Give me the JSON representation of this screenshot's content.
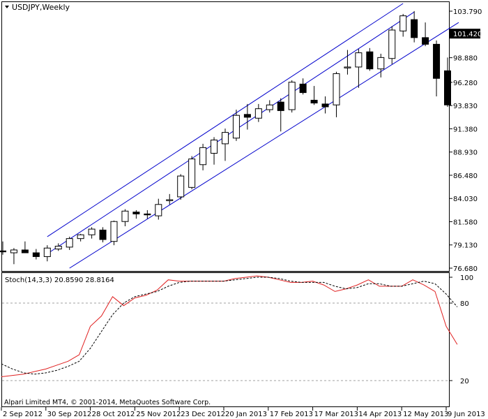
{
  "chart_data": [
    {
      "type": "candlestick",
      "title": "USDJPY,Weekly",
      "yticks": [
        "103.790",
        "101.420",
        "98.880",
        "96.280",
        "93.830",
        "91.380",
        "88.930",
        "86.480",
        "84.030",
        "81.580",
        "79.130",
        "76.680"
      ],
      "ylim": [
        76.68,
        104.6
      ],
      "current_price": "101.420",
      "xticks": [
        "2 Sep 2012",
        "30 Sep 2012",
        "28 Oct 2012",
        "25 Nov 2012",
        "23 Dec 2012",
        "20 Jan 2013",
        "17 Feb 2013",
        "17 Mar 2013",
        "14 Apr 2013",
        "12 May 2013",
        "9 Jun 2013"
      ],
      "candles": [
        {
          "x": 0,
          "o": 78.5,
          "h": 79.5,
          "l": 78.1,
          "c": 78.4
        },
        {
          "x": 1,
          "o": 78.3,
          "h": 78.8,
          "l": 77.1,
          "c": 78.6
        },
        {
          "x": 2,
          "o": 78.6,
          "h": 79.5,
          "l": 78.3,
          "c": 78.3
        },
        {
          "x": 3,
          "o": 78.3,
          "h": 78.7,
          "l": 77.6,
          "c": 77.9
        },
        {
          "x": 4,
          "o": 77.9,
          "h": 79.1,
          "l": 77.4,
          "c": 78.8
        },
        {
          "x": 5,
          "o": 78.7,
          "h": 79.3,
          "l": 78.5,
          "c": 79.0
        },
        {
          "x": 6,
          "o": 78.9,
          "h": 80.0,
          "l": 78.6,
          "c": 79.8
        },
        {
          "x": 7,
          "o": 79.8,
          "h": 80.3,
          "l": 79.5,
          "c": 80.2
        },
        {
          "x": 8,
          "o": 80.2,
          "h": 81.0,
          "l": 79.8,
          "c": 80.8
        },
        {
          "x": 9,
          "o": 80.7,
          "h": 81.0,
          "l": 79.4,
          "c": 79.7
        },
        {
          "x": 10,
          "o": 79.5,
          "h": 81.7,
          "l": 79.1,
          "c": 81.6
        },
        {
          "x": 11,
          "o": 81.6,
          "h": 82.9,
          "l": 81.1,
          "c": 82.7
        },
        {
          "x": 12,
          "o": 82.6,
          "h": 82.8,
          "l": 81.9,
          "c": 82.4
        },
        {
          "x": 13,
          "o": 82.4,
          "h": 82.8,
          "l": 81.9,
          "c": 82.3
        },
        {
          "x": 14,
          "o": 82.2,
          "h": 84.0,
          "l": 81.8,
          "c": 83.4
        },
        {
          "x": 15,
          "o": 83.8,
          "h": 84.5,
          "l": 83.4,
          "c": 83.9
        },
        {
          "x": 16,
          "o": 84.2,
          "h": 86.6,
          "l": 83.9,
          "c": 86.4
        },
        {
          "x": 17,
          "o": 85.2,
          "h": 88.5,
          "l": 85.0,
          "c": 88.2
        },
        {
          "x": 18,
          "o": 87.6,
          "h": 89.8,
          "l": 87.0,
          "c": 89.4
        },
        {
          "x": 19,
          "o": 88.8,
          "h": 90.5,
          "l": 87.6,
          "c": 90.2
        },
        {
          "x": 20,
          "o": 89.8,
          "h": 91.4,
          "l": 88.0,
          "c": 91.0
        },
        {
          "x": 21,
          "o": 90.4,
          "h": 93.4,
          "l": 90.1,
          "c": 92.8
        },
        {
          "x": 22,
          "o": 92.9,
          "h": 94.0,
          "l": 91.3,
          "c": 92.6
        },
        {
          "x": 23,
          "o": 92.5,
          "h": 94.0,
          "l": 92.1,
          "c": 93.5
        },
        {
          "x": 24,
          "o": 93.4,
          "h": 94.4,
          "l": 93.1,
          "c": 93.9
        },
        {
          "x": 25,
          "o": 94.2,
          "h": 94.6,
          "l": 91.1,
          "c": 93.3
        },
        {
          "x": 26,
          "o": 93.4,
          "h": 96.5,
          "l": 93.1,
          "c": 96.3
        },
        {
          "x": 27,
          "o": 96.1,
          "h": 96.7,
          "l": 95.0,
          "c": 95.2
        },
        {
          "x": 28,
          "o": 94.4,
          "h": 95.9,
          "l": 93.9,
          "c": 94.1
        },
        {
          "x": 29,
          "o": 94.0,
          "h": 94.8,
          "l": 93.0,
          "c": 93.7
        },
        {
          "x": 30,
          "o": 93.9,
          "h": 97.4,
          "l": 92.6,
          "c": 97.2
        },
        {
          "x": 31,
          "o": 97.8,
          "h": 99.7,
          "l": 97.1,
          "c": 97.9
        },
        {
          "x": 32,
          "o": 97.9,
          "h": 99.8,
          "l": 95.7,
          "c": 99.4
        },
        {
          "x": 33,
          "o": 99.5,
          "h": 99.9,
          "l": 97.5,
          "c": 97.7
        },
        {
          "x": 34,
          "o": 97.7,
          "h": 99.3,
          "l": 96.8,
          "c": 98.9
        },
        {
          "x": 35,
          "o": 98.8,
          "h": 102.2,
          "l": 98.2,
          "c": 101.8
        },
        {
          "x": 36,
          "o": 101.7,
          "h": 103.5,
          "l": 101.1,
          "c": 103.3
        },
        {
          "x": 37,
          "o": 102.9,
          "h": 103.8,
          "l": 100.5,
          "c": 101.0
        },
        {
          "x": 38,
          "o": 101.0,
          "h": 102.6,
          "l": 100.1,
          "c": 100.3
        },
        {
          "x": 39,
          "o": 100.3,
          "h": 100.7,
          "l": 94.8,
          "c": 96.7
        },
        {
          "x": 40,
          "o": 97.5,
          "h": 98.9,
          "l": 93.7,
          "c": 93.9
        }
      ],
      "channel_lines": [
        {
          "x": [
            4,
            36
          ],
          "y": [
            80.0,
            104.6
          ]
        },
        {
          "x": [
            4,
            37
          ],
          "y": [
            78.2,
            103.7
          ]
        },
        {
          "x": [
            6,
            41
          ],
          "y": [
            76.68,
            102.6
          ]
        }
      ]
    },
    {
      "type": "line",
      "title": "Stoch(14,3,3) 20.8590 28.8164",
      "ylim": [
        0,
        100
      ],
      "yticks": [
        "100",
        "80",
        "20"
      ],
      "levels": [
        80,
        20
      ],
      "series": [
        {
          "values": [
            23,
            24,
            25,
            27,
            29,
            32,
            35,
            40,
            62,
            70,
            85,
            78,
            84,
            86,
            90,
            98,
            97,
            97,
            97,
            97,
            97,
            99,
            100,
            101,
            100,
            98,
            96,
            96,
            97,
            94,
            89,
            91,
            94,
            98,
            93,
            93,
            93,
            98,
            94,
            89,
            62,
            48
          ],
          "color": "#e02020"
        },
        {
          "values": [
            33,
            29,
            26,
            25,
            26,
            28,
            31,
            35,
            45,
            58,
            71,
            80,
            85,
            87,
            89,
            93,
            96,
            97,
            97,
            97,
            97,
            98,
            99,
            100,
            100,
            99,
            97,
            96,
            96,
            96,
            93,
            91,
            92,
            95,
            95,
            93,
            93,
            95,
            97,
            95,
            87,
            77
          ],
          "color": "#000000",
          "dashed": true
        }
      ]
    }
  ],
  "footer": {
    "copyright": "Alpari Limited MT4, © 2001-2014, MetaQuotes Software Corp."
  },
  "colors": {
    "channel": "#0000cc",
    "candle_up_fill": "#ffffff",
    "candle_down_fill": "#000000",
    "candle_outline": "#000000",
    "price_label_bg": "#000000",
    "level_line": "#a0a0a0"
  }
}
